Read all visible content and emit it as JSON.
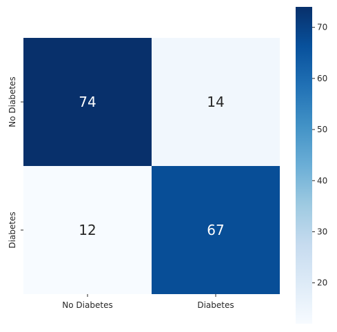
{
  "chart_data": {
    "type": "heatmap",
    "title": "",
    "xlabel": "",
    "ylabel": "",
    "x_categories": [
      "No Diabetes",
      "Diabetes"
    ],
    "y_categories": [
      "No Diabetes",
      "Diabetes"
    ],
    "values": [
      [
        74,
        14
      ],
      [
        12,
        67
      ]
    ],
    "colormap": "Blues",
    "colorbar": {
      "range": [
        12,
        74
      ],
      "ticks": [
        20,
        30,
        40,
        50,
        60,
        70
      ],
      "placement": "right"
    },
    "grid": false,
    "colors": {
      "low": "#f7fbff",
      "high": "#08306b"
    }
  }
}
